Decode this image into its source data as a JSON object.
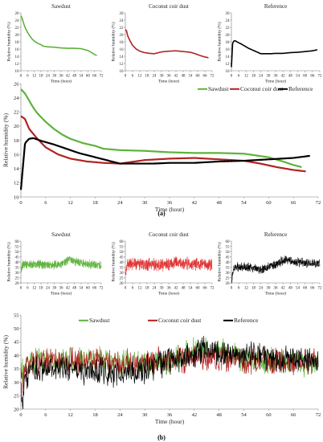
{
  "panel_labels": [
    "(a)",
    "(b)"
  ],
  "chart_data": [
    {
      "id": "a-sawdust",
      "type": "line",
      "title": "Sawdust",
      "xlabel": "Time (hour)",
      "ylabel": "Relative humidity (%)",
      "xlim": [
        0,
        72
      ],
      "ylim": [
        10,
        26
      ],
      "xticks": [
        0,
        6,
        12,
        18,
        24,
        30,
        36,
        42,
        48,
        54,
        60,
        66,
        72
      ],
      "yticks": [
        10,
        12,
        14,
        16,
        18,
        20,
        22,
        24,
        26
      ],
      "grid": false,
      "series": [
        {
          "name": "Sawdust",
          "color": "#5db33a",
          "x": [
            0,
            1,
            2,
            3,
            4,
            6,
            8,
            10,
            12,
            15,
            18,
            20,
            24,
            30,
            36,
            42,
            48,
            54,
            60,
            64,
            66,
            68
          ],
          "y": [
            25.2,
            24.6,
            23.6,
            22.6,
            21.8,
            20.6,
            19.6,
            18.8,
            18.2,
            17.6,
            17.2,
            16.8,
            16.6,
            16.5,
            16.3,
            16.2,
            16.2,
            16.1,
            15.6,
            14.9,
            14.5,
            14.2
          ]
        }
      ]
    },
    {
      "id": "a-coir",
      "type": "line",
      "title": "Coconut coir dust",
      "xlabel": "Time (hour)",
      "ylabel": "Relative humidity (%)",
      "xlim": [
        0,
        72
      ],
      "ylim": [
        10,
        26
      ],
      "xticks": [
        0,
        6,
        12,
        18,
        24,
        30,
        36,
        42,
        48,
        54,
        60,
        66,
        72
      ],
      "yticks": [
        10,
        12,
        14,
        16,
        18,
        20,
        22,
        24,
        26
      ],
      "grid": false,
      "series": [
        {
          "name": "Coconut coir dust",
          "color": "#b22222",
          "x": [
            0,
            1,
            2,
            4,
            6,
            9,
            12,
            16,
            20,
            24,
            30,
            36,
            42,
            48,
            54,
            58,
            62,
            66,
            69
          ],
          "y": [
            21.4,
            21.0,
            19.6,
            18.2,
            17.0,
            16.0,
            15.4,
            15.0,
            14.8,
            14.7,
            15.2,
            15.4,
            15.5,
            15.3,
            15.1,
            14.7,
            14.2,
            13.8,
            13.6
          ]
        }
      ]
    },
    {
      "id": "a-reference",
      "type": "line",
      "title": "Reference",
      "xlabel": "Time (hour)",
      "ylabel": "Relative humidity (%)",
      "xlim": [
        0,
        72
      ],
      "ylim": [
        10,
        26
      ],
      "xticks": [
        0,
        6,
        12,
        18,
        24,
        30,
        36,
        42,
        48,
        54,
        60,
        66,
        72
      ],
      "yticks": [
        10,
        12,
        14,
        16,
        18,
        20,
        22,
        24,
        26
      ],
      "grid": false,
      "series": [
        {
          "name": "Reference",
          "color": "#000000",
          "x": [
            0,
            1,
            2,
            3,
            5,
            8,
            10,
            14,
            18,
            22,
            24,
            28,
            32,
            36,
            42,
            48,
            54,
            60,
            66,
            70
          ],
          "y": [
            11.0,
            17.6,
            18.2,
            18.3,
            17.9,
            17.4,
            17.0,
            16.2,
            15.6,
            15.0,
            14.7,
            14.7,
            14.7,
            14.8,
            14.8,
            15.0,
            15.1,
            15.3,
            15.5,
            15.8
          ]
        }
      ]
    },
    {
      "id": "a-combined",
      "type": "line",
      "title": "",
      "xlabel": "Time (hour)",
      "ylabel": "Relative humidity (%)",
      "xlim": [
        0,
        72
      ],
      "ylim": [
        10,
        26
      ],
      "xticks": [
        0,
        6,
        12,
        18,
        24,
        30,
        36,
        42,
        48,
        54,
        60,
        66,
        72
      ],
      "yticks": [
        10,
        12,
        14,
        16,
        18,
        20,
        22,
        24,
        26
      ],
      "grid": false,
      "legend": "top-right",
      "series": [
        {
          "name": "Sawdust",
          "color": "#5db33a",
          "x": [
            0,
            1,
            2,
            3,
            4,
            6,
            8,
            10,
            12,
            15,
            18,
            20,
            24,
            30,
            36,
            42,
            48,
            54,
            60,
            64,
            66,
            68
          ],
          "y": [
            25.2,
            24.6,
            23.6,
            22.6,
            21.8,
            20.6,
            19.6,
            18.8,
            18.2,
            17.6,
            17.2,
            16.8,
            16.6,
            16.5,
            16.3,
            16.2,
            16.2,
            16.1,
            15.6,
            14.9,
            14.5,
            14.2
          ]
        },
        {
          "name": "Coconut coir dust",
          "color": "#b22222",
          "x": [
            0,
            1,
            2,
            4,
            6,
            9,
            12,
            16,
            20,
            24,
            30,
            36,
            42,
            48,
            54,
            58,
            62,
            66,
            69
          ],
          "y": [
            21.4,
            21.0,
            19.6,
            18.2,
            17.0,
            16.0,
            15.4,
            15.0,
            14.8,
            14.7,
            15.2,
            15.4,
            15.5,
            15.3,
            15.1,
            14.7,
            14.2,
            13.8,
            13.6
          ]
        },
        {
          "name": "Reference",
          "color": "#000000",
          "x": [
            0,
            1,
            2,
            3,
            5,
            8,
            10,
            14,
            18,
            22,
            24,
            28,
            32,
            36,
            42,
            48,
            54,
            60,
            66,
            70
          ],
          "y": [
            11.0,
            17.6,
            18.2,
            18.3,
            17.9,
            17.4,
            17.0,
            16.2,
            15.6,
            15.0,
            14.7,
            14.7,
            14.7,
            14.8,
            14.8,
            15.0,
            15.1,
            15.3,
            15.5,
            15.8
          ]
        }
      ]
    },
    {
      "id": "b-sawdust",
      "type": "line",
      "title": "Sawdust",
      "xlabel": "Time (hour)",
      "ylabel": "Relative humidity (%)",
      "xlim": [
        0,
        72
      ],
      "ylim": [
        20,
        60
      ],
      "xticks": [
        0,
        6,
        12,
        18,
        24,
        30,
        36,
        42,
        48,
        54,
        60,
        66,
        72
      ],
      "yticks": [
        20,
        25,
        30,
        35,
        40,
        45,
        50,
        55,
        60
      ],
      "grid": false,
      "noisy": true,
      "noise_amplitude": 5,
      "series": [
        {
          "name": "Sawdust",
          "color": "#5db33a",
          "x": [
            0,
            0.5,
            1,
            2,
            3,
            6,
            12,
            18,
            24,
            30,
            36,
            40,
            44,
            48,
            54,
            60,
            66,
            72
          ],
          "y": [
            35,
            33,
            36,
            37,
            38,
            38,
            38,
            38,
            37,
            37,
            38,
            40,
            43,
            41,
            39,
            38,
            37,
            37
          ]
        }
      ]
    },
    {
      "id": "b-coir",
      "type": "line",
      "title": "Coconut coir dust",
      "xlabel": "Time (hour)",
      "ylabel": "Relative humidity (%)",
      "xlim": [
        0,
        72
      ],
      "ylim": [
        20,
        60
      ],
      "xticks": [
        0,
        6,
        12,
        18,
        24,
        30,
        36,
        42,
        48,
        54,
        60,
        66,
        72
      ],
      "yticks": [
        20,
        25,
        30,
        35,
        40,
        45,
        50,
        55,
        60
      ],
      "grid": false,
      "noisy": true,
      "noise_amplitude": 7,
      "series": [
        {
          "name": "Coconut coir dust",
          "color": "#e03030",
          "x": [
            0,
            0.5,
            1,
            2,
            3,
            6,
            12,
            18,
            24,
            30,
            36,
            42,
            48,
            54,
            60,
            66,
            72
          ],
          "y": [
            33,
            30,
            36,
            38,
            38,
            38,
            38,
            38,
            37,
            37,
            38,
            39,
            39,
            38,
            38,
            37,
            37
          ]
        }
      ]
    },
    {
      "id": "b-reference",
      "type": "line",
      "title": "Reference",
      "xlabel": "Time (hour)",
      "ylabel": "Relative humidity (%)",
      "xlim": [
        0,
        72
      ],
      "ylim": [
        20,
        60
      ],
      "xticks": [
        0,
        6,
        12,
        18,
        24,
        30,
        36,
        42,
        48,
        54,
        60,
        66,
        72
      ],
      "yticks": [
        20,
        25,
        30,
        35,
        40,
        45,
        50,
        55,
        60
      ],
      "grid": false,
      "noisy": true,
      "noise_amplitude": 5,
      "series": [
        {
          "name": "Reference",
          "color": "#000000",
          "x": [
            0,
            0.5,
            1,
            2,
            3,
            6,
            12,
            18,
            24,
            30,
            36,
            40,
            44,
            48,
            54,
            60,
            66,
            72
          ],
          "y": [
            28,
            22,
            30,
            34,
            35,
            35,
            35,
            34,
            33,
            35,
            38,
            40,
            42,
            41,
            40,
            39,
            39,
            38
          ]
        }
      ]
    },
    {
      "id": "b-combined",
      "type": "line",
      "title": "",
      "xlabel": "Time (hour)",
      "ylabel": "Relative humidity (%)",
      "xlim": [
        0,
        72
      ],
      "ylim": [
        20,
        55
      ],
      "xticks": [
        0,
        6,
        12,
        18,
        24,
        30,
        36,
        42,
        48,
        54,
        60,
        66,
        72
      ],
      "yticks": [
        20,
        25,
        30,
        35,
        40,
        45,
        50,
        55
      ],
      "grid": false,
      "legend": "top",
      "noisy": true,
      "noise_amplitude": 6,
      "series": [
        {
          "name": "Sawdust",
          "color": "#5db33a",
          "x": [
            0,
            0.5,
            1,
            2,
            3,
            6,
            12,
            18,
            24,
            30,
            36,
            40,
            44,
            48,
            54,
            60,
            66,
            72
          ],
          "y": [
            35,
            33,
            36,
            37,
            38,
            38,
            38,
            38,
            37,
            37,
            38,
            40,
            43,
            41,
            39,
            38,
            37,
            37
          ]
        },
        {
          "name": "Coconut coir dust",
          "color": "#b22222",
          "x": [
            0,
            0.5,
            1,
            2,
            3,
            6,
            12,
            18,
            24,
            30,
            36,
            42,
            48,
            54,
            60,
            66,
            72
          ],
          "y": [
            33,
            30,
            36,
            38,
            38,
            38,
            38,
            38,
            37,
            37,
            38,
            39,
            39,
            38,
            38,
            37,
            37
          ]
        },
        {
          "name": "Reference",
          "color": "#000000",
          "x": [
            0,
            0.5,
            1,
            2,
            3,
            6,
            12,
            18,
            24,
            30,
            36,
            40,
            44,
            48,
            54,
            60,
            66,
            72
          ],
          "y": [
            28,
            22,
            30,
            34,
            35,
            35,
            35,
            34,
            33,
            35,
            38,
            40,
            42,
            41,
            40,
            39,
            39,
            38
          ]
        }
      ]
    }
  ]
}
